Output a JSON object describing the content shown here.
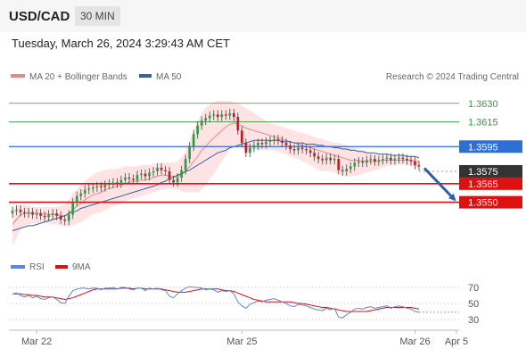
{
  "header": {
    "pair": "USD/CAD",
    "timeframe": "30 MIN",
    "datetime": "Tuesday, March 26, 2024 3:29:43 AM CET"
  },
  "legend": {
    "ma20": "MA 20 + Bollinger Bands",
    "ma50": "MA 50",
    "credit": "Research © 2024 Trading Central",
    "rsi": "RSI",
    "ma9": "9MA"
  },
  "colors": {
    "up": "#2e9e3e",
    "down": "#c0202a",
    "ma20": "#e58a8a",
    "ma50": "#3a5fa0",
    "band": "#fde0e0",
    "resistance": "#2e9e3e",
    "pivot": "#2e6fd6",
    "support": "#dd1111",
    "current": "#333333",
    "arrow": "#2e5fa8",
    "rsi": "#5b86e5",
    "rsi_ma": "#dd1111"
  },
  "chart_data": [
    {
      "type": "candlestick",
      "title": "USD/CAD 30 MIN",
      "x_ticks": [
        "Mar 22",
        "Mar 25",
        "Mar 26",
        "Apr 5"
      ],
      "y_labels": [
        "1.3630",
        "1.3615",
        "1.3595",
        "1.3575",
        "1.3565",
        "1.3550"
      ],
      "ylim": [
        1.351,
        1.3645
      ],
      "levels": [
        {
          "value": 1.363,
          "label": "1.3630",
          "kind": "resistance"
        },
        {
          "value": 1.3615,
          "label": "1.3615",
          "kind": "resistance"
        },
        {
          "value": 1.3595,
          "label": "1.3595",
          "kind": "pivot"
        },
        {
          "value": 1.3575,
          "label": "1.3575",
          "kind": "current"
        },
        {
          "value": 1.3565,
          "label": "1.3565",
          "kind": "support"
        },
        {
          "value": 1.355,
          "label": "1.3550",
          "kind": "support"
        }
      ],
      "close": [
        1.3543,
        1.3544,
        1.3542,
        1.3541,
        1.3542,
        1.354,
        1.3541,
        1.3539,
        1.3538,
        1.354,
        1.3541,
        1.3539,
        1.3536,
        1.3535,
        1.354,
        1.355,
        1.3555,
        1.3557,
        1.356,
        1.3561,
        1.3562,
        1.3563,
        1.3562,
        1.3564,
        1.3565,
        1.3566,
        1.3565,
        1.3568,
        1.357,
        1.3569,
        1.3568,
        1.3572,
        1.3573,
        1.3571,
        1.3574,
        1.3575,
        1.3578,
        1.3576,
        1.3575,
        1.3568,
        1.3566,
        1.357,
        1.3576,
        1.3585,
        1.3595,
        1.3605,
        1.3612,
        1.3616,
        1.3618,
        1.362,
        1.3621,
        1.3619,
        1.3621,
        1.362,
        1.3622,
        1.3619,
        1.3608,
        1.3598,
        1.359,
        1.3594,
        1.3596,
        1.3598,
        1.3597,
        1.3599,
        1.36,
        1.3601,
        1.36,
        1.3598,
        1.3596,
        1.3593,
        1.3592,
        1.3594,
        1.3593,
        1.3592,
        1.359,
        1.3587,
        1.3585,
        1.3584,
        1.3586,
        1.3584,
        1.3585,
        1.3576,
        1.3575,
        1.3577,
        1.3579,
        1.3582,
        1.3583,
        1.3582,
        1.3584,
        1.3585,
        1.3583,
        1.3584,
        1.3585,
        1.3586,
        1.3584,
        1.3585,
        1.3586,
        1.3585,
        1.3584,
        1.3583,
        1.358,
        1.3579
      ],
      "ma20": [
        1.3532,
        1.3536,
        1.354,
        1.3541,
        1.3541,
        1.3541,
        1.3541,
        1.3541,
        1.3541,
        1.354,
        1.354,
        1.354,
        1.3539,
        1.3539,
        1.3541,
        1.3544,
        1.3547,
        1.3549,
        1.3552,
        1.3554,
        1.3556,
        1.3557,
        1.3558,
        1.356,
        1.3561,
        1.3562,
        1.3563,
        1.3564,
        1.3565,
        1.3566,
        1.3567,
        1.3567,
        1.3568,
        1.3568,
        1.3569,
        1.357,
        1.3571,
        1.3572,
        1.3572,
        1.3571,
        1.3571,
        1.3571,
        1.3572,
        1.3575,
        1.3579,
        1.3583,
        1.3587,
        1.3592,
        1.3595,
        1.3599,
        1.3602,
        1.3605,
        1.3608,
        1.3611,
        1.3613,
        1.3614,
        1.3613,
        1.3612,
        1.361,
        1.3609,
        1.3608,
        1.3607,
        1.3606,
        1.3605,
        1.3604,
        1.3603,
        1.3602,
        1.3601,
        1.36,
        1.3599,
        1.3598,
        1.3597,
        1.3596,
        1.3595,
        1.3594,
        1.3593,
        1.3592,
        1.3591,
        1.359,
        1.3589,
        1.3588,
        1.3587,
        1.3586,
        1.3585,
        1.3584,
        1.3584,
        1.3584,
        1.3583,
        1.3583,
        1.3583,
        1.3583,
        1.3583,
        1.3584,
        1.3584,
        1.3584,
        1.3584,
        1.3584,
        1.3584,
        1.3584,
        1.3584,
        1.3583,
        1.3583
      ],
      "bb_upper": [
        1.3545,
        1.3547,
        1.3548,
        1.3548,
        1.3547,
        1.3546,
        1.3546,
        1.3546,
        1.3546,
        1.3546,
        1.3546,
        1.3546,
        1.3547,
        1.3548,
        1.3552,
        1.3557,
        1.3561,
        1.3564,
        1.3567,
        1.357,
        1.3572,
        1.3574,
        1.3575,
        1.3576,
        1.3577,
        1.3577,
        1.3577,
        1.3578,
        1.3579,
        1.3579,
        1.3579,
        1.3579,
        1.358,
        1.358,
        1.358,
        1.3581,
        1.3582,
        1.3582,
        1.3582,
        1.3582,
        1.3582,
        1.3583,
        1.3586,
        1.3592,
        1.36,
        1.3608,
        1.3616,
        1.3622,
        1.3626,
        1.3629,
        1.3631,
        1.3632,
        1.3632,
        1.3632,
        1.3632,
        1.3631,
        1.363,
        1.3628,
        1.3626,
        1.3624,
        1.3622,
        1.362,
        1.3618,
        1.3616,
        1.3614,
        1.3613,
        1.3612,
        1.3611,
        1.361,
        1.3609,
        1.3608,
        1.3607,
        1.3606,
        1.3605,
        1.3604,
        1.3603,
        1.3602,
        1.3601,
        1.36,
        1.3599,
        1.3598,
        1.3598,
        1.3597,
        1.3596,
        1.3595,
        1.3594,
        1.3593,
        1.3592,
        1.3591,
        1.359,
        1.3589,
        1.3589,
        1.3588,
        1.3588,
        1.3587,
        1.3587,
        1.3587,
        1.3587,
        1.3587,
        1.3587,
        1.3587,
        1.3586
      ],
      "bb_lower": [
        1.3515,
        1.3521,
        1.3528,
        1.3531,
        1.3532,
        1.3533,
        1.3533,
        1.3533,
        1.3533,
        1.3533,
        1.3532,
        1.3532,
        1.3531,
        1.353,
        1.353,
        1.3531,
        1.3533,
        1.3534,
        1.3536,
        1.3538,
        1.354,
        1.3541,
        1.3542,
        1.3544,
        1.3545,
        1.3547,
        1.3548,
        1.3549,
        1.3551,
        1.3552,
        1.3553,
        1.3554,
        1.3555,
        1.3556,
        1.3557,
        1.3558,
        1.3559,
        1.356,
        1.3561,
        1.3561,
        1.3561,
        1.356,
        1.3559,
        1.3558,
        1.3558,
        1.3558,
        1.3558,
        1.356,
        1.3564,
        1.3569,
        1.3573,
        1.3578,
        1.3583,
        1.3588,
        1.3593,
        1.3596,
        1.3596,
        1.3594,
        1.3592,
        1.3592,
        1.3592,
        1.3592,
        1.3592,
        1.3592,
        1.3592,
        1.3592,
        1.3591,
        1.359,
        1.3589,
        1.3587,
        1.3586,
        1.3585,
        1.3583,
        1.3582,
        1.358,
        1.3578,
        1.3576,
        1.3575,
        1.3575,
        1.3575,
        1.3574,
        1.3573,
        1.3571,
        1.3571,
        1.3571,
        1.3571,
        1.3572,
        1.3573,
        1.3574,
        1.3575,
        1.3576,
        1.3577,
        1.3578,
        1.3579,
        1.358,
        1.358,
        1.358,
        1.358,
        1.358,
        1.358,
        1.3578,
        1.3577
      ],
      "ma50": [
        1.3527,
        1.3528,
        1.3529,
        1.353,
        1.3531,
        1.3531,
        1.3532,
        1.3533,
        1.3534,
        1.3535,
        1.3536,
        1.3537,
        1.3538,
        1.3539,
        1.3541,
        1.3542,
        1.3543,
        1.3545,
        1.3546,
        1.3547,
        1.3548,
        1.3549,
        1.355,
        1.3551,
        1.3552,
        1.3553,
        1.3554,
        1.3555,
        1.3556,
        1.3557,
        1.3558,
        1.3559,
        1.356,
        1.3561,
        1.3562,
        1.3563,
        1.3564,
        1.3566,
        1.3567,
        1.3569,
        1.357,
        1.3572,
        1.3573,
        1.3575,
        1.3576,
        1.3578,
        1.358,
        1.3582,
        1.3584,
        1.3586,
        1.3588,
        1.359,
        1.3591,
        1.3592,
        1.3594,
        1.3595,
        1.3596,
        1.3597,
        1.3598,
        1.3599,
        1.36,
        1.36,
        1.36,
        1.36,
        1.36,
        1.36,
        1.36,
        1.3599,
        1.3599,
        1.3599,
        1.3598,
        1.3598,
        1.3598,
        1.3597,
        1.3597,
        1.3597,
        1.3596,
        1.3596,
        1.3595,
        1.3595,
        1.3594,
        1.3594,
        1.3593,
        1.3593,
        1.3592,
        1.3592,
        1.3591,
        1.3591,
        1.359,
        1.359,
        1.359,
        1.3589,
        1.3589,
        1.3589,
        1.3588,
        1.3588,
        1.3588,
        1.3588,
        1.3587,
        1.3587,
        1.3587,
        1.3586
      ],
      "forecast_to": 1.3552
    },
    {
      "type": "line",
      "title": "RSI",
      "y_ticks": [
        70,
        50,
        30
      ],
      "ylim": [
        20,
        80
      ],
      "series": [
        {
          "name": "RSI",
          "values": [
            62,
            63,
            60,
            58,
            60,
            57,
            59,
            56,
            55,
            57,
            58,
            55,
            51,
            50,
            59,
            66,
            68,
            69,
            69,
            68,
            69,
            69,
            67,
            69,
            69,
            70,
            68,
            70,
            70,
            68,
            67,
            69,
            69,
            66,
            69,
            68,
            69,
            67,
            66,
            59,
            57,
            62,
            66,
            69,
            71,
            70,
            70,
            69,
            67,
            68,
            67,
            64,
            66,
            65,
            66,
            62,
            52,
            47,
            44,
            49,
            51,
            53,
            52,
            54,
            55,
            56,
            54,
            52,
            50,
            47,
            46,
            49,
            48,
            47,
            45,
            43,
            42,
            41,
            44,
            42,
            44,
            33,
            32,
            36,
            39,
            43,
            44,
            43,
            45,
            46,
            44,
            45,
            46,
            47,
            44,
            46,
            47,
            46,
            44,
            43,
            40,
            39
          ]
        },
        {
          "name": "9MA",
          "values": [
            62,
            62,
            62,
            61,
            61,
            60,
            60,
            59,
            58,
            58,
            58,
            57,
            56,
            55,
            56,
            57,
            59,
            61,
            63,
            65,
            67,
            68,
            68,
            68,
            68,
            68,
            68,
            69,
            69,
            69,
            68,
            69,
            69,
            68,
            68,
            68,
            68,
            68,
            67,
            66,
            65,
            64,
            64,
            64,
            65,
            66,
            67,
            68,
            68,
            68,
            68,
            68,
            67,
            66,
            66,
            65,
            63,
            61,
            59,
            57,
            55,
            54,
            53,
            52,
            52,
            52,
            52,
            52,
            52,
            52,
            51,
            50,
            50,
            49,
            48,
            47,
            46,
            45,
            45,
            44,
            43,
            42,
            41,
            40,
            40,
            40,
            40,
            40,
            40,
            41,
            42,
            43,
            44,
            45,
            45,
            45,
            45,
            45,
            45,
            45,
            44,
            43
          ]
        }
      ]
    }
  ]
}
